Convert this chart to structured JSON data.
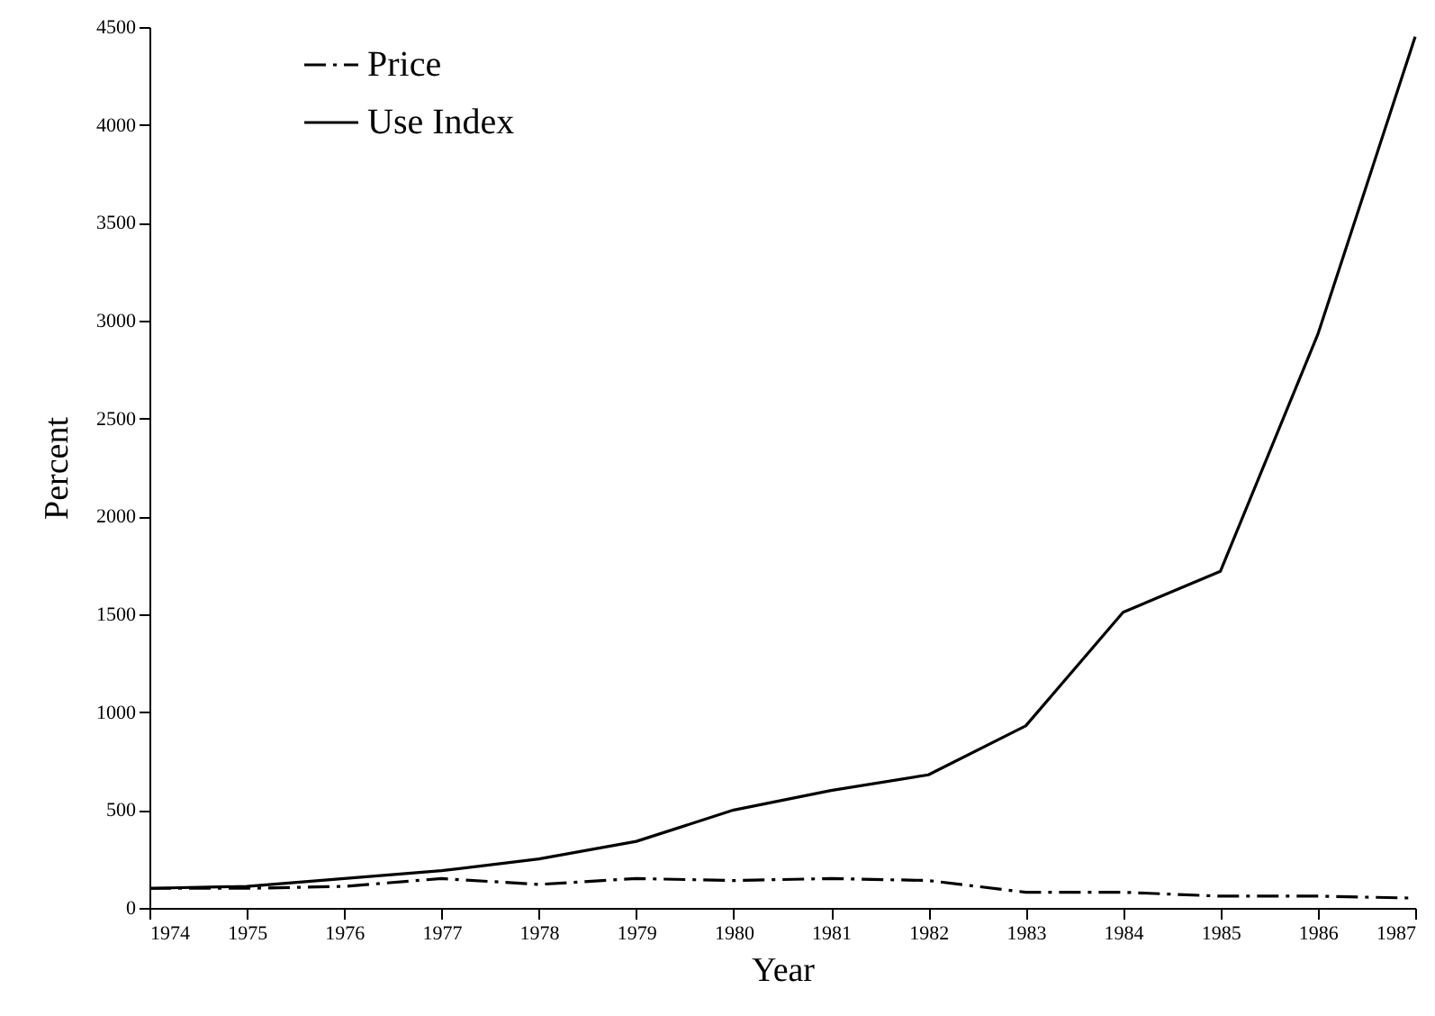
{
  "chart_data": {
    "type": "line",
    "xlabel": "Year",
    "ylabel": "Percent",
    "x": [
      1974,
      1975,
      1976,
      1977,
      1978,
      1979,
      1980,
      1981,
      1982,
      1983,
      1984,
      1985,
      1986,
      1987
    ],
    "series": [
      {
        "name": "Price",
        "color": "#000000",
        "line_style": "dashed",
        "values": [
          100,
          100,
          110,
          150,
          120,
          150,
          140,
          150,
          140,
          80,
          80,
          60,
          60,
          50
        ]
      },
      {
        "name": "Use Index",
        "color": "#000000",
        "line_style": "solid",
        "values": [
          100,
          110,
          150,
          190,
          250,
          340,
          500,
          600,
          680,
          930,
          1510,
          1720,
          2930,
          4450
        ]
      }
    ],
    "xlim": [
      1974,
      1987
    ],
    "xticks": [
      1974,
      1975,
      1976,
      1977,
      1978,
      1979,
      1980,
      1981,
      1982,
      1983,
      1984,
      1985,
      1986,
      1987
    ],
    "ylim": [
      0,
      4500
    ],
    "yticks": [
      0,
      500,
      1000,
      1500,
      2000,
      2500,
      3000,
      3500,
      4000,
      4500
    ],
    "grid": false,
    "legend": "top left",
    "marker": "none"
  }
}
